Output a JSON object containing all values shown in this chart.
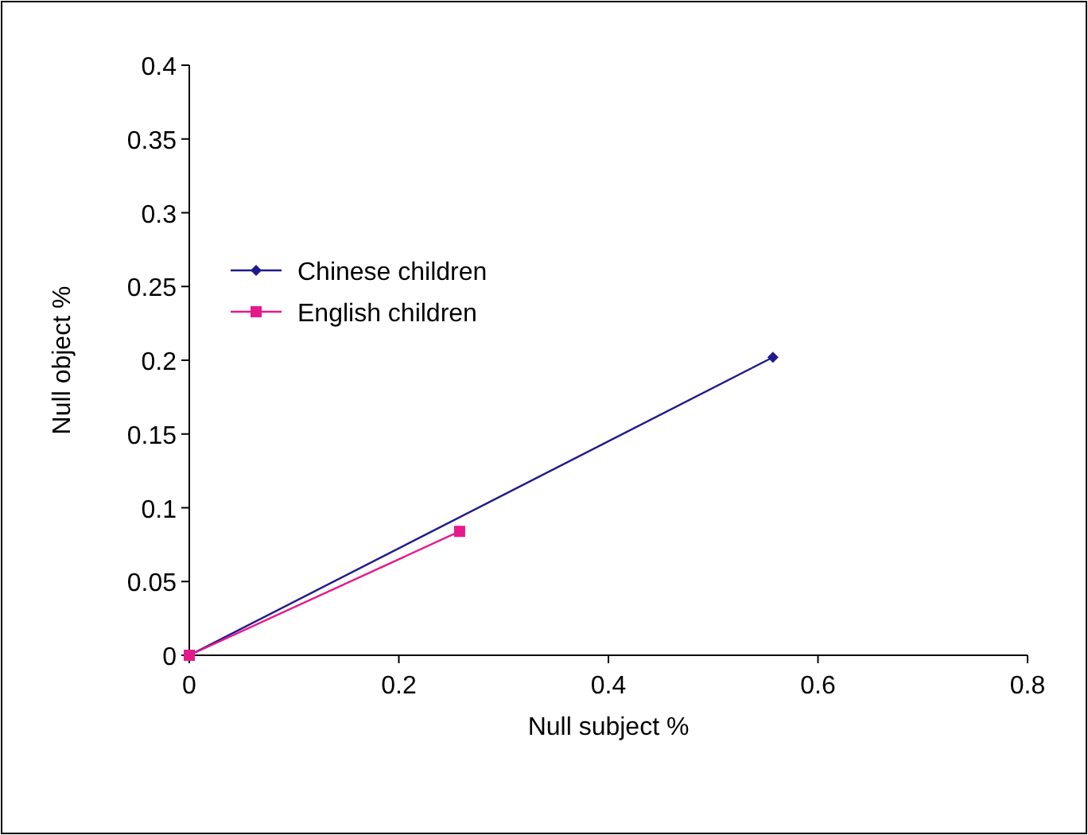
{
  "chart_data": {
    "type": "line",
    "xlabel": "Null subject %",
    "ylabel": "Null object %",
    "xlim": [
      0,
      0.8
    ],
    "xticks": [
      0,
      0.2,
      0.4,
      0.6,
      0.8
    ],
    "ylim": [
      0,
      0.4
    ],
    "yticks": [
      0,
      0.05,
      0.1,
      0.15,
      0.2,
      0.25,
      0.3,
      0.35,
      0.4
    ],
    "grid": false,
    "legend": "left",
    "series": [
      {
        "name": "Chinese children",
        "color": "#1f1a8c",
        "marker": "diamond",
        "x": [
          0,
          0.557
        ],
        "values": [
          0,
          0.202
        ]
      },
      {
        "name": "English children",
        "color": "#e6198c",
        "marker": "square",
        "x": [
          0,
          0.258
        ],
        "values": [
          0,
          0.084
        ]
      }
    ]
  }
}
